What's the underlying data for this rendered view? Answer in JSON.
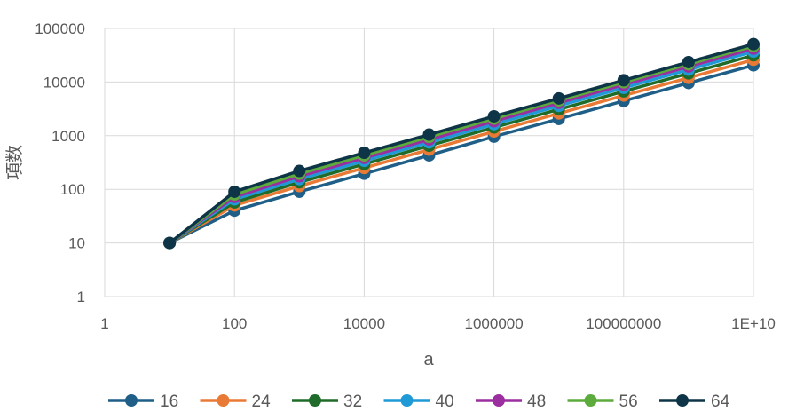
{
  "chart_data": {
    "type": "line",
    "xlabel": "a",
    "ylabel": "項数",
    "x_scale": "log",
    "y_scale": "log",
    "xlim": [
      1,
      10000000000
    ],
    "ylim": [
      1,
      100000
    ],
    "x_ticks": [
      1,
      100,
      10000,
      1000000,
      100000000,
      10000000000
    ],
    "x_tick_labels": [
      "1",
      "100",
      "10000",
      "1000000",
      "100000000",
      "1E+10"
    ],
    "y_ticks": [
      1,
      10,
      100,
      1000,
      10000,
      100000
    ],
    "y_tick_labels": [
      "1",
      "10",
      "100",
      "1000",
      "10000",
      "100000"
    ],
    "grid": true,
    "legend_position": "bottom",
    "x": [
      10,
      100,
      1000,
      10000,
      100000,
      1000000,
      10000000,
      100000000,
      1000000000,
      10000000000
    ],
    "series": [
      {
        "name": "16",
        "color": "#1f5f87",
        "values": [
          10,
          40,
          90,
          195,
          430,
          960,
          2050,
          4450,
          9600,
          20500
        ]
      },
      {
        "name": "24",
        "color": "#e97a35",
        "values": [
          10,
          50,
          115,
          250,
          550,
          1200,
          2600,
          5600,
          12000,
          26000
        ]
      },
      {
        "name": "32",
        "color": "#1e6b2a",
        "values": [
          10,
          57,
          135,
          295,
          650,
          1420,
          3100,
          6700,
          14500,
          31500
        ]
      },
      {
        "name": "40",
        "color": "#1f9ad6",
        "values": [
          10,
          65,
          155,
          340,
          750,
          1640,
          3600,
          7800,
          17000,
          37000
        ]
      },
      {
        "name": "48",
        "color": "#9b2fa0",
        "values": [
          10,
          72,
          175,
          385,
          850,
          1860,
          4100,
          8900,
          19500,
          42000
        ]
      },
      {
        "name": "56",
        "color": "#5dab3c",
        "values": [
          10,
          80,
          195,
          430,
          950,
          2080,
          4550,
          9900,
          21500,
          47000
        ]
      },
      {
        "name": "64",
        "color": "#0d3447",
        "values": [
          10,
          90,
          220,
          480,
          1050,
          2300,
          4950,
          10800,
          23500,
          51000
        ]
      }
    ]
  }
}
